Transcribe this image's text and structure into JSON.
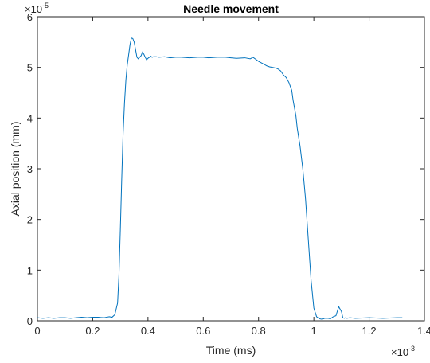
{
  "chart_data": {
    "type": "line",
    "title": "Needle movement",
    "xlabel": "Time (ms)",
    "ylabel": "Axial position (mm)",
    "xlim": [
      0,
      1.4
    ],
    "ylim": [
      0,
      6
    ],
    "x_ticks": [
      "0",
      "0.2",
      "0.4",
      "0.6",
      "0.8",
      "1",
      "1.2",
      "1.4"
    ],
    "y_ticks": [
      "0",
      "1",
      "2",
      "3",
      "4",
      "5",
      "6"
    ],
    "x_multiplier": {
      "base": "×10",
      "exponent": "-3"
    },
    "y_multiplier": {
      "base": "×10",
      "exponent": "-5"
    },
    "grid": false,
    "series": [
      {
        "color": "#0072BD",
        "x": [
          0.0,
          0.02,
          0.04,
          0.06,
          0.08,
          0.1,
          0.12,
          0.14,
          0.16,
          0.18,
          0.2,
          0.22,
          0.24,
          0.26,
          0.27,
          0.28,
          0.29,
          0.295,
          0.3,
          0.305,
          0.31,
          0.315,
          0.32,
          0.325,
          0.33,
          0.335,
          0.34,
          0.345,
          0.35,
          0.355,
          0.36,
          0.365,
          0.37,
          0.375,
          0.38,
          0.385,
          0.39,
          0.395,
          0.4,
          0.405,
          0.41,
          0.415,
          0.42,
          0.43,
          0.44,
          0.46,
          0.48,
          0.5,
          0.52,
          0.55,
          0.58,
          0.6,
          0.62,
          0.65,
          0.68,
          0.7,
          0.72,
          0.75,
          0.77,
          0.78,
          0.79,
          0.8,
          0.81,
          0.82,
          0.83,
          0.84,
          0.85,
          0.86,
          0.87,
          0.88,
          0.89,
          0.9,
          0.91,
          0.92,
          0.925,
          0.93,
          0.935,
          0.94,
          0.95,
          0.96,
          0.97,
          0.98,
          0.99,
          1.0,
          1.01,
          1.02,
          1.03,
          1.04,
          1.05,
          1.06,
          1.07,
          1.08,
          1.09,
          1.1,
          1.105,
          1.11,
          1.115,
          1.12,
          1.13,
          1.15,
          1.2,
          1.25,
          1.3,
          1.32
        ],
        "y": [
          0.06,
          0.05,
          0.06,
          0.05,
          0.06,
          0.06,
          0.05,
          0.06,
          0.07,
          0.06,
          0.07,
          0.07,
          0.06,
          0.08,
          0.07,
          0.12,
          0.35,
          0.9,
          1.8,
          2.8,
          3.7,
          4.3,
          4.75,
          5.05,
          5.25,
          5.45,
          5.58,
          5.57,
          5.5,
          5.35,
          5.2,
          5.17,
          5.2,
          5.23,
          5.3,
          5.26,
          5.2,
          5.15,
          5.18,
          5.2,
          5.22,
          5.2,
          5.21,
          5.21,
          5.2,
          5.21,
          5.19,
          5.2,
          5.2,
          5.19,
          5.2,
          5.2,
          5.19,
          5.2,
          5.2,
          5.19,
          5.18,
          5.19,
          5.17,
          5.2,
          5.16,
          5.12,
          5.09,
          5.06,
          5.03,
          5.01,
          5.0,
          4.99,
          4.97,
          4.93,
          4.85,
          4.8,
          4.7,
          4.55,
          4.35,
          4.2,
          4.05,
          3.8,
          3.45,
          3.0,
          2.4,
          1.6,
          0.8,
          0.25,
          0.08,
          0.04,
          0.03,
          0.05,
          0.05,
          0.04,
          0.08,
          0.1,
          0.28,
          0.18,
          0.06,
          0.05,
          0.06,
          0.05,
          0.06,
          0.05,
          0.06,
          0.05,
          0.06,
          0.06
        ]
      }
    ]
  }
}
